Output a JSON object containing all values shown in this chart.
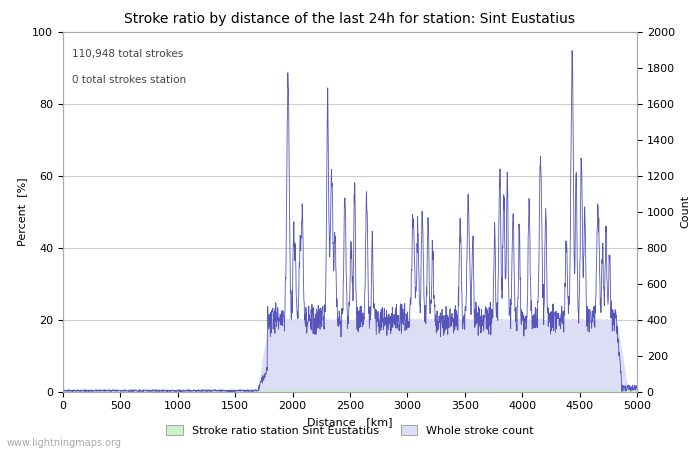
{
  "title": "Stroke ratio by distance of the last 24h for station: Sint Eustatius",
  "xlabel": "Distance   [km]",
  "ylabel_left": "Percent  [%]",
  "ylabel_right": "Count",
  "annotation_line1": "110,948 total strokes",
  "annotation_line2": "0 total strokes station",
  "xlim": [
    0,
    5000
  ],
  "ylim_left": [
    0,
    100
  ],
  "ylim_right": [
    0,
    2000
  ],
  "xticks": [
    0,
    500,
    1000,
    1500,
    2000,
    2500,
    3000,
    3500,
    4000,
    4500,
    5000
  ],
  "yticks_left": [
    0,
    20,
    40,
    60,
    80,
    100
  ],
  "yticks_right": [
    0,
    200,
    400,
    600,
    800,
    1000,
    1200,
    1400,
    1600,
    1800,
    2000
  ],
  "legend_items": [
    "Stroke ratio station Sint Eustatius",
    "Whole stroke count"
  ],
  "fill_station_color": "#ccf0cc",
  "fill_count_color": "#ddddf5",
  "line_color": "#5555bb",
  "background_color": "#ffffff",
  "grid_color": "#cccccc",
  "watermark": "www.lightningmaps.org",
  "watermark_color": "#aaaaaa",
  "title_fontsize": 10,
  "label_fontsize": 8,
  "tick_fontsize": 8
}
